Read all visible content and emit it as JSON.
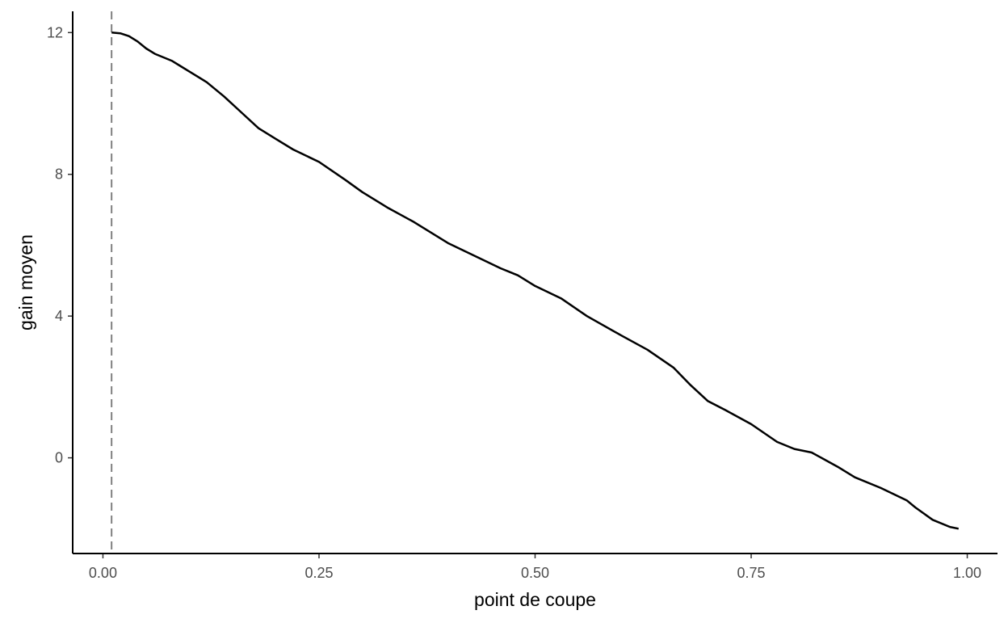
{
  "chart_data": {
    "type": "line",
    "title": "",
    "xlabel": "point de coupe",
    "ylabel": "gain moyen",
    "xlim": [
      -0.035,
      1.035
    ],
    "ylim": [
      -2.7,
      12.6
    ],
    "x_ticks": [
      0.0,
      0.25,
      0.5,
      0.75,
      1.0
    ],
    "x_tick_labels": [
      "0.00",
      "0.25",
      "0.50",
      "0.75",
      "1.00"
    ],
    "y_ticks": [
      0,
      4,
      8,
      12
    ],
    "y_tick_labels": [
      "0",
      "4",
      "8",
      "12"
    ],
    "grid": false,
    "legend": "none",
    "vline": {
      "x": 0.01,
      "style": "dashed",
      "color": "#808080"
    },
    "line_color": "#000000",
    "series": [
      {
        "x": [
          0.01,
          0.02,
          0.03,
          0.04,
          0.05,
          0.06,
          0.07,
          0.08,
          0.09,
          0.1,
          0.12,
          0.14,
          0.16,
          0.18,
          0.2,
          0.22,
          0.25,
          0.28,
          0.3,
          0.33,
          0.36,
          0.4,
          0.43,
          0.46,
          0.48,
          0.5,
          0.53,
          0.56,
          0.6,
          0.63,
          0.66,
          0.68,
          0.7,
          0.72,
          0.75,
          0.78,
          0.8,
          0.82,
          0.85,
          0.87,
          0.9,
          0.93,
          0.94,
          0.96,
          0.98,
          0.99
        ],
        "y": [
          12.0,
          11.98,
          11.9,
          11.75,
          11.55,
          11.4,
          11.3,
          11.2,
          11.05,
          10.9,
          10.6,
          10.2,
          9.75,
          9.3,
          9.0,
          8.7,
          8.35,
          7.85,
          7.5,
          7.05,
          6.65,
          6.05,
          5.7,
          5.35,
          5.15,
          4.85,
          4.5,
          4.0,
          3.45,
          3.05,
          2.55,
          2.05,
          1.6,
          1.35,
          0.95,
          0.45,
          0.25,
          0.15,
          -0.25,
          -0.55,
          -0.85,
          -1.2,
          -1.4,
          -1.75,
          -1.95,
          -2.0
        ]
      }
    ]
  }
}
